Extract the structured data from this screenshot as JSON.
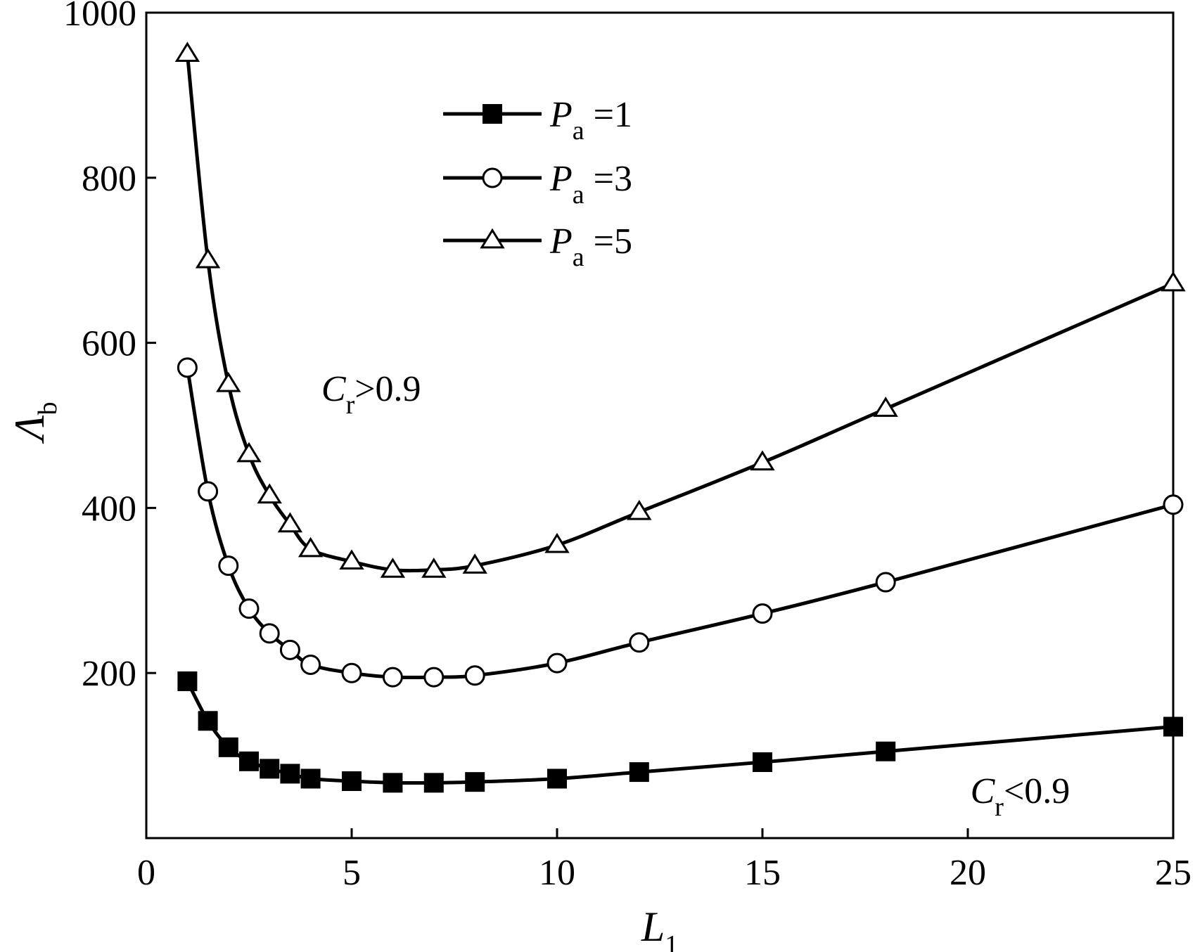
{
  "chart_data": {
    "type": "line",
    "title": "",
    "xlabel": "L",
    "xlabel_sub": "1",
    "ylabel": "Λ",
    "ylabel_sub": "b",
    "xlim": [
      0,
      25
    ],
    "ylim": [
      0,
      1000
    ],
    "xticks": [
      0,
      5,
      10,
      15,
      20,
      25
    ],
    "yticks": [
      200,
      400,
      600,
      800,
      1000
    ],
    "grid": false,
    "legend_placement": "top-center",
    "x": [
      1,
      1.5,
      2,
      2.5,
      3,
      3.5,
      4,
      5,
      6,
      7,
      8,
      10,
      12,
      15,
      18,
      25
    ],
    "series": [
      {
        "name_main": "P",
        "name_sub": "a",
        "name_rest": "=1",
        "marker": "square-filled",
        "values": [
          190,
          142,
          110,
          93,
          84,
          78,
          72,
          69,
          67,
          67,
          68,
          72,
          80,
          92,
          105,
          135
        ]
      },
      {
        "name_main": "P",
        "name_sub": "a",
        "name_rest": "=3",
        "marker": "circle-open",
        "values": [
          570,
          420,
          330,
          278,
          248,
          228,
          210,
          200,
          195,
          195,
          197,
          212,
          237,
          272,
          310,
          404
        ]
      },
      {
        "name_main": "P",
        "name_sub": "a",
        "name_rest": "=5",
        "marker": "triangle-open",
        "values": [
          950,
          700,
          550,
          465,
          415,
          380,
          350,
          335,
          325,
          325,
          330,
          355,
          395,
          455,
          520,
          672
        ]
      }
    ],
    "annotations": [
      {
        "main": "C",
        "sub": "r",
        "rest": ">0.9",
        "x": 5.7,
        "y": 545
      },
      {
        "main": "C",
        "sub": "r",
        "rest": "<0.9",
        "x": 21.5,
        "y": 58
      }
    ],
    "color": "#000000"
  }
}
